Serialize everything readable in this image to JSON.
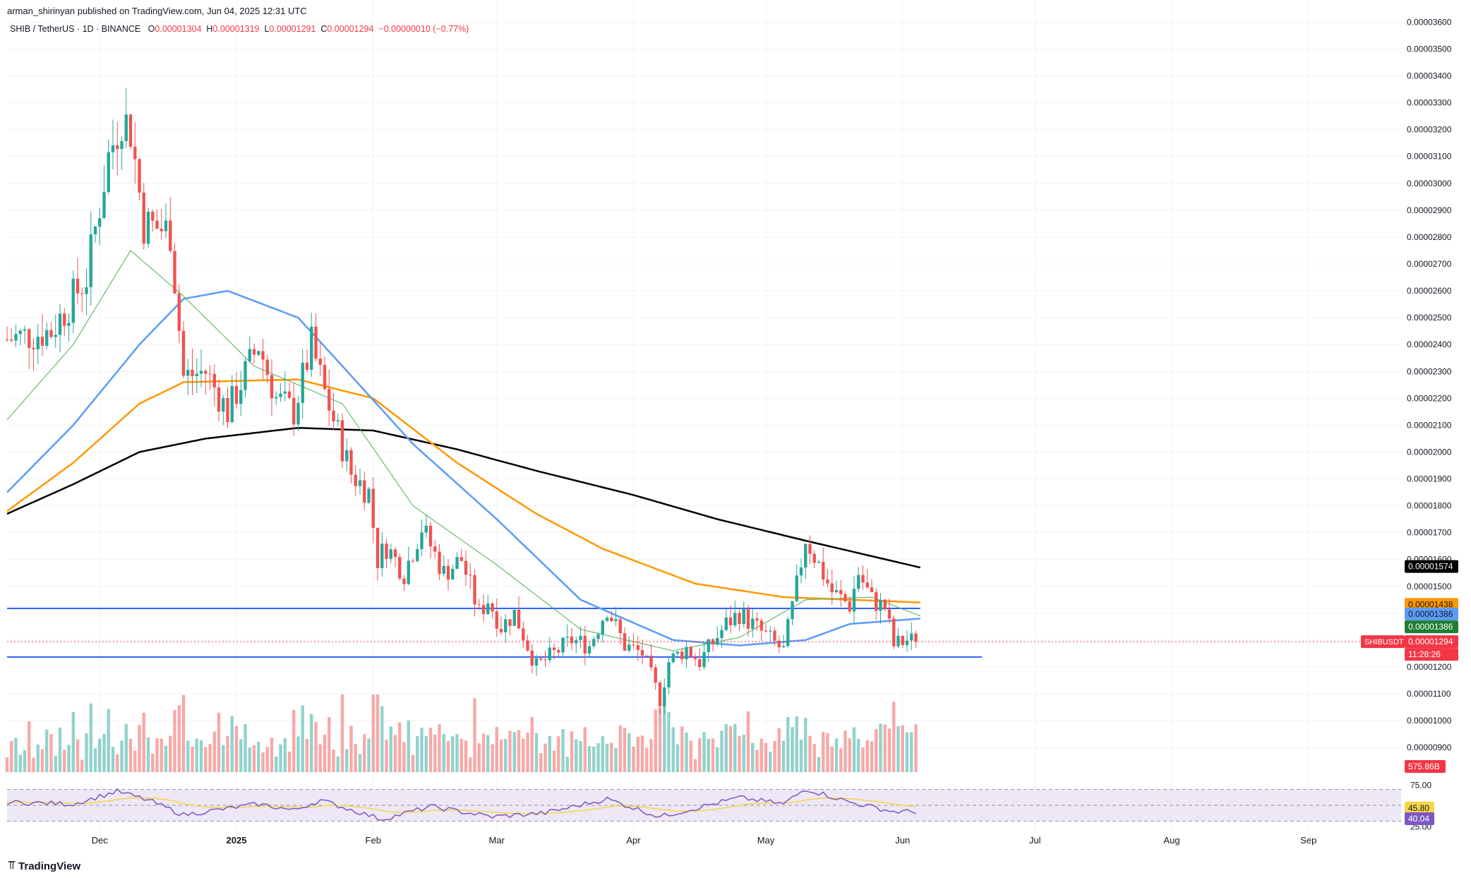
{
  "header": {
    "publisher_line": "arman_shirinyan published on TradingView.com, Jun 04, 2025 12:31 UTC"
  },
  "legend": {
    "symbol": "SHIB / TetherUS · 1D · BINANCE",
    "o_label": "O",
    "o_value": "0.00001304",
    "h_label": "H",
    "h_value": "0.00001319",
    "l_label": "L",
    "l_value": "0.00001291",
    "c_label": "C",
    "c_value": "0.00001294",
    "change": "−0.00000010 (−0.77%)"
  },
  "colors": {
    "up": "#26a69a",
    "down": "#ef5350",
    "ma_black": "#000000",
    "ma_orange": "#ff9800",
    "ma_blue": "#5b9cf6",
    "ma_green": "#4caf50",
    "hline": "#2962ff",
    "rsi": "#7e57c2",
    "rsi_ma": "#f7d54a",
    "rsi_band": "#ede7f6"
  },
  "price_labels": [
    {
      "text": "0.00001574",
      "bg": "#000000",
      "fg": "#ffffff",
      "value": 1.574e-05
    },
    {
      "text": "0.00001438",
      "bg": "#ff9800",
      "fg": "#131722",
      "value": 1.438e-05
    },
    {
      "text": "0.00001386",
      "bg": "#5b9cf6",
      "fg": "#131722",
      "value": 1.386e-05
    },
    {
      "text": "0.00001386",
      "bg": "#1e7e34",
      "fg": "#ffffff",
      "value": 1.386e-05
    },
    {
      "text": "0.00001294",
      "bg": "#f23645",
      "fg": "#ffffff",
      "value": 1.294e-05
    }
  ],
  "symbol_tag": "SHIBUSDT",
  "countdown": "11:28:26",
  "volume_label": "575.86B",
  "rsi_labels": {
    "upper": "75.00",
    "lower": "25.00",
    "ma_value": "45.80",
    "rsi_value": "40.04"
  },
  "tv_logo_text": "TradingView",
  "chart_data": {
    "type": "candlestick",
    "title": "SHIB / TetherUS · 1D · BINANCE",
    "x_labels": [
      {
        "text": "Dec",
        "date": "2024-12-01"
      },
      {
        "text": "2025",
        "date": "2025-01-01"
      },
      {
        "text": "Feb",
        "date": "2025-02-01"
      },
      {
        "text": "Mar",
        "date": "2025-03-01"
      },
      {
        "text": "Apr",
        "date": "2025-04-01"
      },
      {
        "text": "May",
        "date": "2025-05-01"
      },
      {
        "text": "Jun",
        "date": "2025-06-01"
      },
      {
        "text": "Jul",
        "date": "2025-07-01"
      },
      {
        "text": "Aug",
        "date": "2025-08-01"
      },
      {
        "text": "Sep",
        "date": "2025-09-01"
      }
    ],
    "x_range": [
      "2024-11-10",
      "2025-09-22"
    ],
    "y_ticks": [
      "0.00000900",
      "0.00001000",
      "0.00001100",
      "0.00001200",
      "0.00001300",
      "0.00001400",
      "0.00001500",
      "0.00001600",
      "0.00001700",
      "0.00001800",
      "0.00001900",
      "0.00002000",
      "0.00002100",
      "0.00002200",
      "0.00002300",
      "0.00002400",
      "0.00002500",
      "0.00002600",
      "0.00002700",
      "0.00002800",
      "0.00002900",
      "0.00003000",
      "0.00003100",
      "0.00003200",
      "0.00003300",
      "0.00003400",
      "0.00003500",
      "0.00003600"
    ],
    "ylim": [
      8.4e-06,
      3.63e-05
    ],
    "horizontal_lines": [
      {
        "value": 1.418e-05,
        "from": "2024-11-10",
        "to": "2025-06-05"
      },
      {
        "value": 1.237e-05,
        "from": "2024-11-10",
        "to": "2025-06-19"
      }
    ],
    "last_close": 1.294e-05,
    "close_anchors": [
      [
        "2024-11-10",
        2.42e-05
      ],
      [
        "2024-11-20",
        2.45e-05
      ],
      [
        "2024-11-28",
        2.65e-05
      ],
      [
        "2024-12-03",
        3.1e-05
      ],
      [
        "2024-12-06",
        3.25e-05
      ],
      [
        "2024-12-08",
        3.2e-05
      ],
      [
        "2024-12-11",
        2.85e-05
      ],
      [
        "2024-12-17",
        2.82e-05
      ],
      [
        "2024-12-20",
        2.28e-05
      ],
      [
        "2024-12-25",
        2.3e-05
      ],
      [
        "2024-12-30",
        2.15e-05
      ],
      [
        "2025-01-06",
        2.4e-05
      ],
      [
        "2025-01-10",
        2.2e-05
      ],
      [
        "2025-01-14",
        2.15e-05
      ],
      [
        "2025-01-18",
        2.4e-05
      ],
      [
        "2025-01-21",
        2.22e-05
      ],
      [
        "2025-01-27",
        1.92e-05
      ],
      [
        "2025-01-31",
        1.85e-05
      ],
      [
        "2025-02-02",
        1.6e-05
      ],
      [
        "2025-02-04",
        1.65e-05
      ],
      [
        "2025-02-08",
        1.55e-05
      ],
      [
        "2025-02-12",
        1.72e-05
      ],
      [
        "2025-02-17",
        1.55e-05
      ],
      [
        "2025-02-21",
        1.6e-05
      ],
      [
        "2025-02-25",
        1.4e-05
      ],
      [
        "2025-02-27",
        1.45e-05
      ],
      [
        "2025-03-02",
        1.35e-05
      ],
      [
        "2025-03-05",
        1.4e-05
      ],
      [
        "2025-03-10",
        1.2e-05
      ],
      [
        "2025-03-14",
        1.25e-05
      ],
      [
        "2025-03-18",
        1.3e-05
      ],
      [
        "2025-03-22",
        1.28e-05
      ],
      [
        "2025-03-26",
        1.42e-05
      ],
      [
        "2025-03-30",
        1.28e-05
      ],
      [
        "2025-04-03",
        1.25e-05
      ],
      [
        "2025-04-07",
        1.08e-05
      ],
      [
        "2025-04-09",
        1.22e-05
      ],
      [
        "2025-04-13",
        1.27e-05
      ],
      [
        "2025-04-16",
        1.22e-05
      ],
      [
        "2025-04-22",
        1.36e-05
      ],
      [
        "2025-04-25",
        1.4e-05
      ],
      [
        "2025-04-30",
        1.33e-05
      ],
      [
        "2025-05-05",
        1.26e-05
      ],
      [
        "2025-05-08",
        1.5e-05
      ],
      [
        "2025-05-10",
        1.68e-05
      ],
      [
        "2025-05-13",
        1.58e-05
      ],
      [
        "2025-05-16",
        1.48e-05
      ],
      [
        "2025-05-20",
        1.43e-05
      ],
      [
        "2025-05-22",
        1.55e-05
      ],
      [
        "2025-05-25",
        1.45e-05
      ],
      [
        "2025-05-28",
        1.42e-05
      ],
      [
        "2025-05-30",
        1.28e-05
      ],
      [
        "2025-06-02",
        1.3e-05
      ],
      [
        "2025-06-04",
        1.294e-05
      ]
    ],
    "ma_series": [
      {
        "color": "#000000",
        "points": [
          [
            "2024-11-10",
            1.77e-05
          ],
          [
            "2024-11-25",
            1.88e-05
          ],
          [
            "2024-12-10",
            2e-05
          ],
          [
            "2024-12-25",
            2.05e-05
          ],
          [
            "2025-01-15",
            2.09e-05
          ],
          [
            "2025-02-01",
            2.08e-05
          ],
          [
            "2025-02-20",
            2.01e-05
          ],
          [
            "2025-03-10",
            1.93e-05
          ],
          [
            "2025-04-01",
            1.84e-05
          ],
          [
            "2025-04-20",
            1.75e-05
          ],
          [
            "2025-05-10",
            1.67e-05
          ],
          [
            "2025-06-05",
            1.57e-05
          ]
        ]
      },
      {
        "color": "#ff9800",
        "points": [
          [
            "2024-11-10",
            1.78e-05
          ],
          [
            "2024-11-25",
            1.96e-05
          ],
          [
            "2024-12-10",
            2.18e-05
          ],
          [
            "2024-12-20",
            2.26e-05
          ],
          [
            "2025-01-15",
            2.27e-05
          ],
          [
            "2025-02-01",
            2.2e-05
          ],
          [
            "2025-02-20",
            1.96e-05
          ],
          [
            "2025-03-10",
            1.77e-05
          ],
          [
            "2025-03-25",
            1.64e-05
          ],
          [
            "2025-04-15",
            1.51e-05
          ],
          [
            "2025-05-05",
            1.46e-05
          ],
          [
            "2025-06-05",
            1.44e-05
          ]
        ]
      },
      {
        "color": "#5b9cf6",
        "points": [
          [
            "2024-11-10",
            1.85e-05
          ],
          [
            "2024-11-25",
            2.1e-05
          ],
          [
            "2024-12-10",
            2.4e-05
          ],
          [
            "2024-12-20",
            2.57e-05
          ],
          [
            "2024-12-30",
            2.6e-05
          ],
          [
            "2025-01-15",
            2.5e-05
          ],
          [
            "2025-01-25",
            2.32e-05
          ],
          [
            "2025-02-10",
            2.03e-05
          ],
          [
            "2025-03-01",
            1.75e-05
          ],
          [
            "2025-03-20",
            1.45e-05
          ],
          [
            "2025-04-10",
            1.3e-05
          ],
          [
            "2025-04-25",
            1.28e-05
          ],
          [
            "2025-05-10",
            1.3e-05
          ],
          [
            "2025-05-20",
            1.36e-05
          ],
          [
            "2025-06-05",
            1.38e-05
          ]
        ]
      },
      {
        "color": "#4caf50",
        "points": [
          [
            "2024-11-10",
            2.12e-05
          ],
          [
            "2024-11-25",
            2.4e-05
          ],
          [
            "2024-12-08",
            2.75e-05
          ],
          [
            "2024-12-20",
            2.58e-05
          ],
          [
            "2025-01-05",
            2.32e-05
          ],
          [
            "2025-01-25",
            2.18e-05
          ],
          [
            "2025-02-10",
            1.8e-05
          ],
          [
            "2025-03-01",
            1.58e-05
          ],
          [
            "2025-03-20",
            1.34e-05
          ],
          [
            "2025-04-10",
            1.26e-05
          ],
          [
            "2025-04-25",
            1.31e-05
          ],
          [
            "2025-05-10",
            1.45e-05
          ],
          [
            "2025-05-25",
            1.46e-05
          ],
          [
            "2025-06-05",
            1.39e-05
          ]
        ]
      }
    ],
    "volume": {
      "last": "575.86B"
    },
    "rsi": {
      "levels": [
        75,
        25
      ],
      "last": 40.04,
      "ma_last": 45.8,
      "anchors": [
        [
          "2024-11-10",
          55
        ],
        [
          "2024-11-25",
          52
        ],
        [
          "2024-12-05",
          72
        ],
        [
          "2024-12-12",
          58
        ],
        [
          "2024-12-20",
          35
        ],
        [
          "2025-01-06",
          52
        ],
        [
          "2025-01-14",
          42
        ],
        [
          "2025-01-20",
          58
        ],
        [
          "2025-02-03",
          28
        ],
        [
          "2025-02-14",
          48
        ],
        [
          "2025-02-28",
          32
        ],
        [
          "2025-03-12",
          38
        ],
        [
          "2025-03-26",
          60
        ],
        [
          "2025-04-07",
          32
        ],
        [
          "2025-04-25",
          62
        ],
        [
          "2025-05-05",
          52
        ],
        [
          "2025-05-10",
          76
        ],
        [
          "2025-05-20",
          55
        ],
        [
          "2025-05-30",
          40
        ],
        [
          "2025-06-04",
          40
        ]
      ]
    }
  }
}
